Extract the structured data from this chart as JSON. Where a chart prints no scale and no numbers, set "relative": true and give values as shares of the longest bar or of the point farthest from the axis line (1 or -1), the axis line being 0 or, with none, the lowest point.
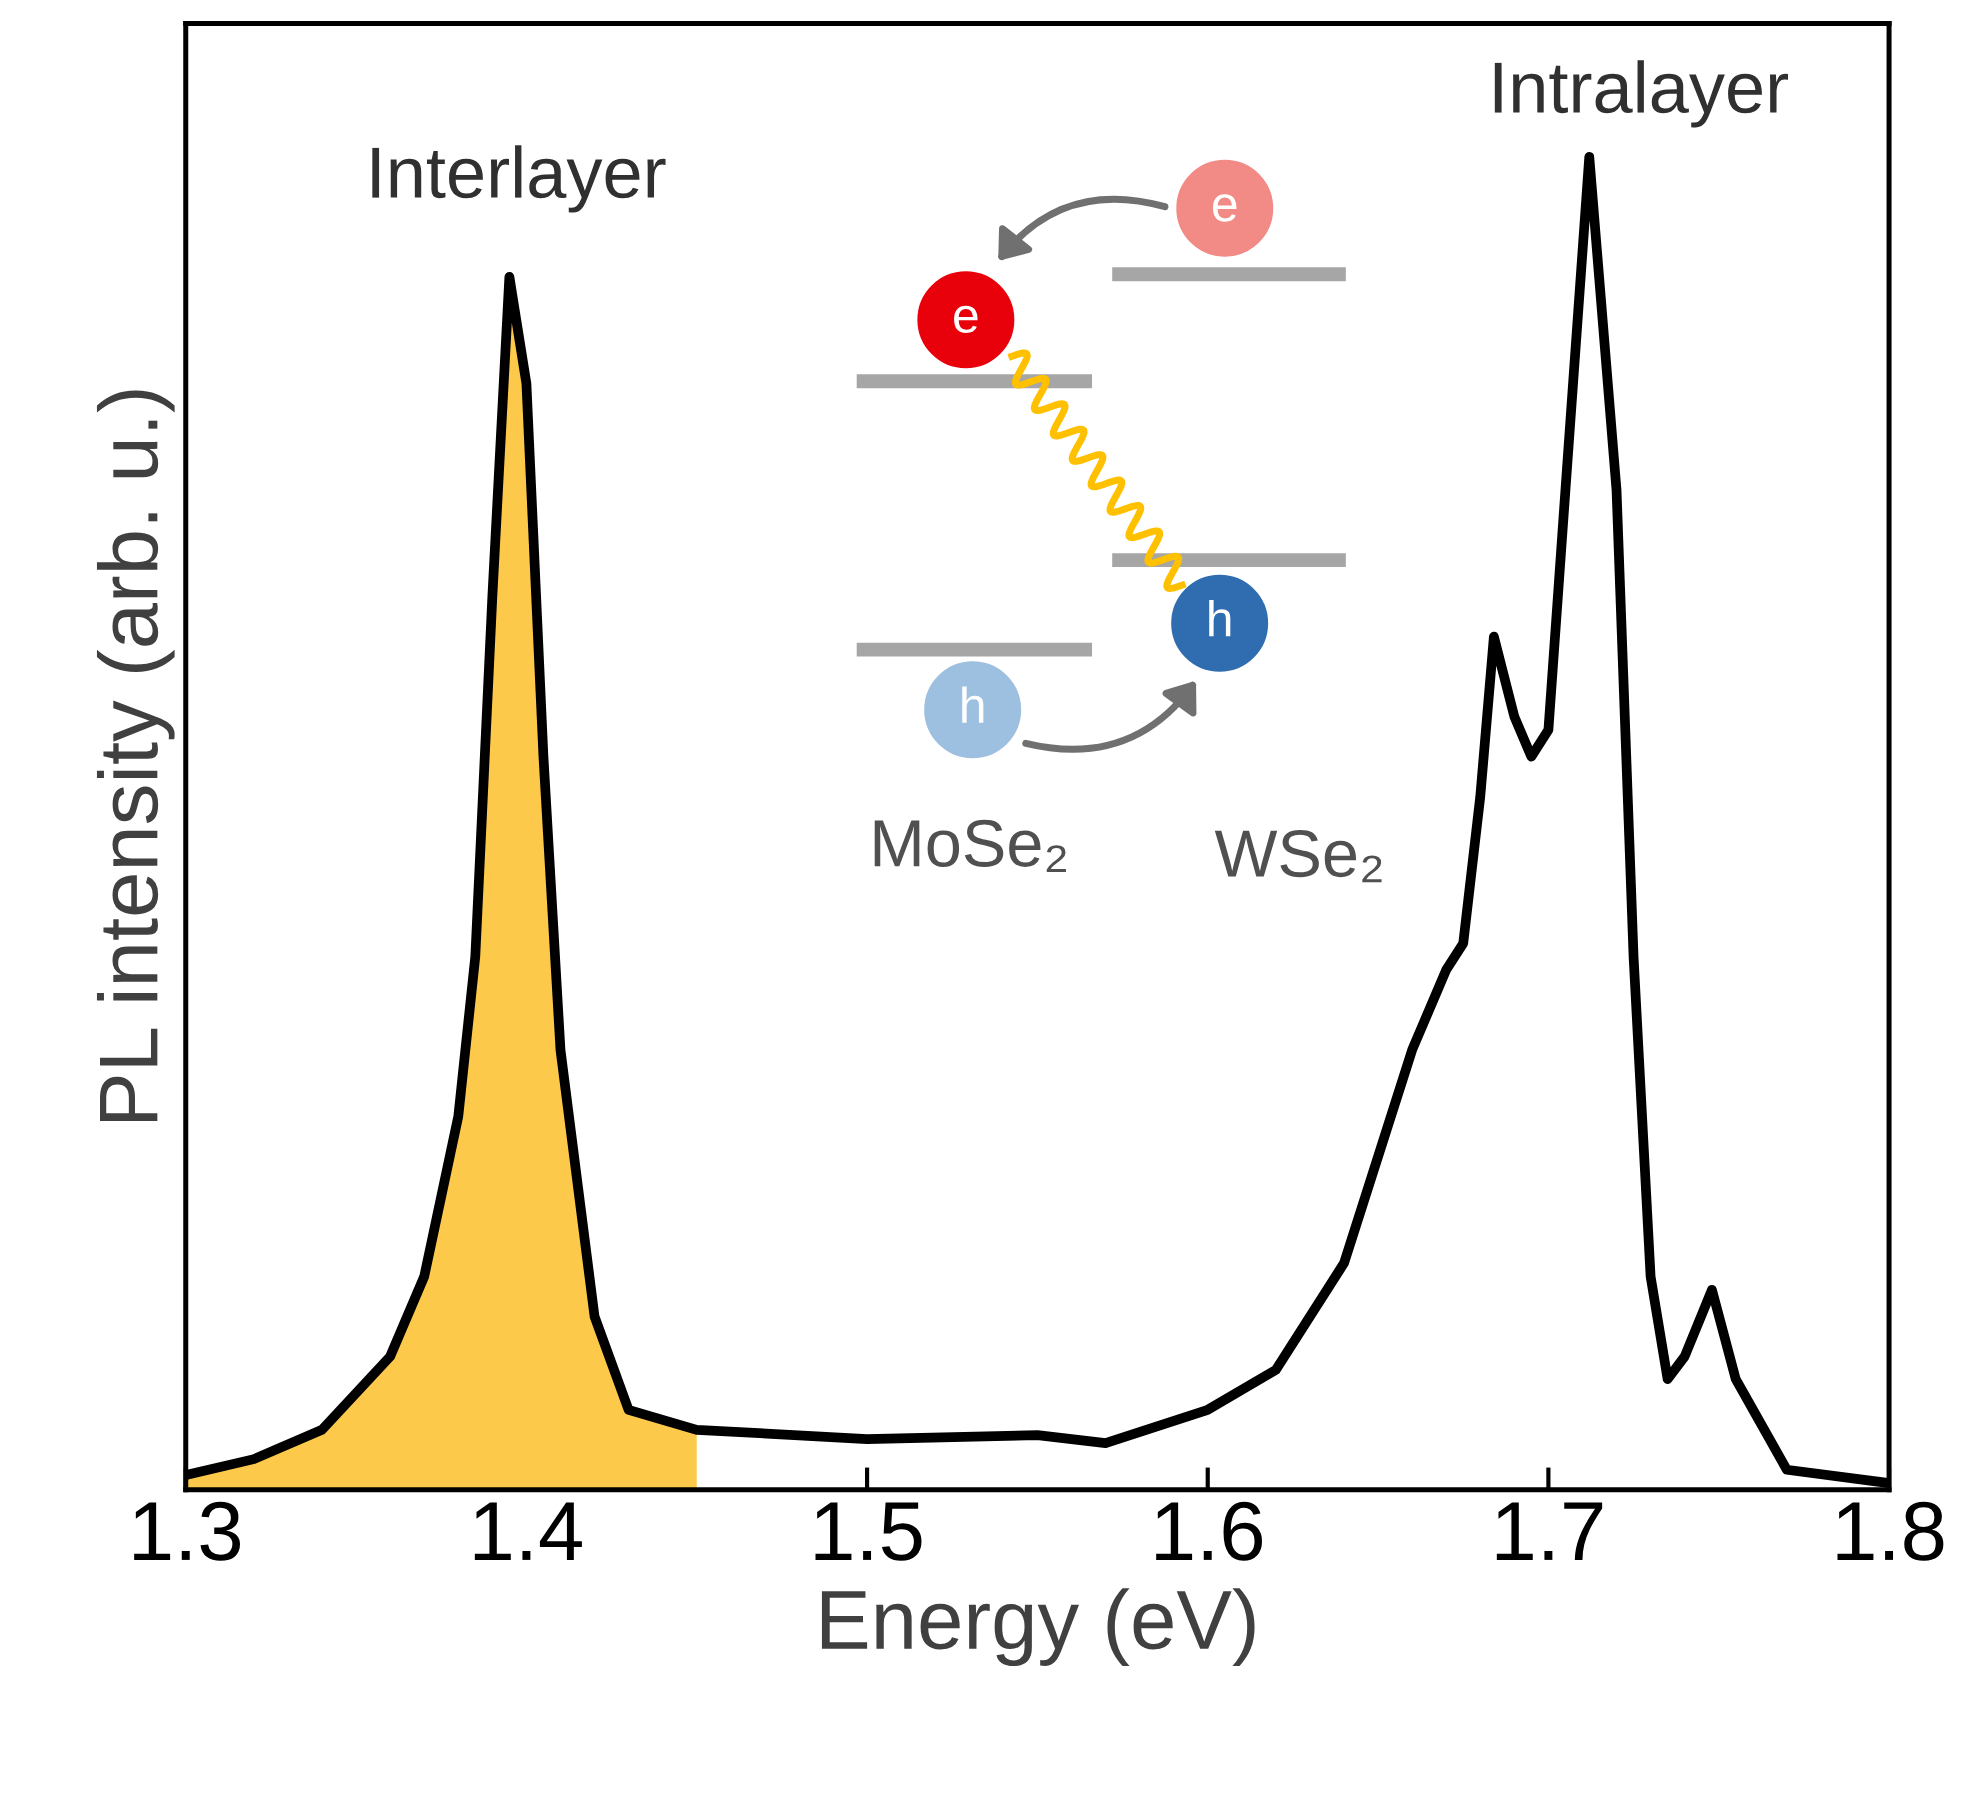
{
  "chart_data": {
    "type": "line",
    "xlabel": "Energy (eV)",
    "ylabel": "PL intensity (arb. u.)",
    "relative": true,
    "xlim": [
      1.3,
      1.8
    ],
    "xticks": [
      1.3,
      1.4,
      1.5,
      1.6,
      1.7,
      1.8
    ],
    "tick_labels": "x",
    "grid": false,
    "series": [
      {
        "type": "area",
        "color": "#fdc94a",
        "x": [
          1.3,
          1.32,
          1.34,
          1.36,
          1.37,
          1.38,
          1.385,
          1.39,
          1.395,
          1.4,
          1.405,
          1.41,
          1.42,
          1.43,
          1.45
        ],
        "values": [
          0.011,
          0.023,
          0.045,
          0.1,
          0.16,
          0.28,
          0.4,
          0.67,
          0.91,
          0.83,
          0.55,
          0.33,
          0.13,
          0.06,
          0.045
        ]
      },
      {
        "color": "#000000",
        "x": [
          1.3,
          1.32,
          1.34,
          1.36,
          1.37,
          1.38,
          1.385,
          1.39,
          1.395,
          1.4,
          1.405,
          1.41,
          1.42,
          1.43,
          1.45,
          1.5,
          1.55,
          1.57,
          1.6,
          1.62,
          1.64,
          1.66,
          1.67,
          1.675,
          1.68,
          1.684,
          1.69,
          1.695,
          1.7,
          1.705,
          1.712,
          1.72,
          1.725,
          1.73,
          1.735,
          1.74,
          1.748,
          1.755,
          1.77,
          1.8
        ],
        "values": [
          0.011,
          0.023,
          0.045,
          0.1,
          0.16,
          0.28,
          0.4,
          0.67,
          0.91,
          0.83,
          0.55,
          0.33,
          0.13,
          0.06,
          0.045,
          0.038,
          0.041,
          0.035,
          0.06,
          0.09,
          0.17,
          0.33,
          0.39,
          0.41,
          0.52,
          0.64,
          0.58,
          0.55,
          0.57,
          0.75,
          1.0,
          0.75,
          0.4,
          0.16,
          0.083,
          0.1,
          0.15,
          0.083,
          0.015,
          0.005
        ]
      }
    ],
    "annotations": [
      "Interlayer",
      "Intralayer",
      "e",
      "e",
      "h",
      "h",
      "MoSe₂",
      "WSe₂"
    ]
  }
}
